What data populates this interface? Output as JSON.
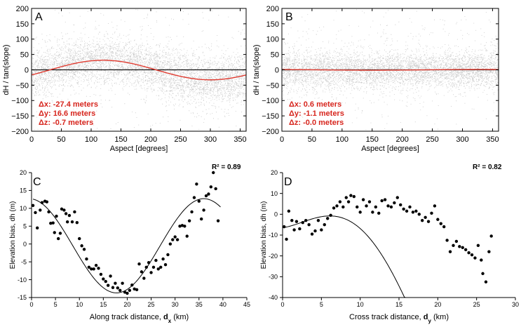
{
  "chart_data": [
    {
      "type": "scatter",
      "panel_label": "A",
      "xlabel": "Aspect [degrees]",
      "ylabel": "dH / tan(slope)",
      "xlim": [
        0,
        360
      ],
      "ylim": [
        -200,
        200
      ],
      "xticks": [
        0,
        50,
        100,
        150,
        200,
        250,
        300,
        350
      ],
      "yticks": [
        -200,
        -150,
        -100,
        -50,
        0,
        50,
        100,
        150,
        200
      ],
      "series": [
        {
          "name": "scatter",
          "kind": "cloud",
          "color": "#9a9a9a",
          "center": 0,
          "spread": 38
        },
        {
          "name": "fit",
          "kind": "sine",
          "amplitude": 31.9,
          "phase_deg": 330,
          "offset": -0.7,
          "color": "#e03c31"
        },
        {
          "name": "zero",
          "kind": "hline",
          "value": 0,
          "color": "#111111"
        }
      ],
      "annotations": [
        "Δx: -27.4 meters",
        "Δy: 16.6  meters",
        "Δz: -0.7  meters"
      ],
      "annotation_color": "#d7261e"
    },
    {
      "type": "scatter",
      "panel_label": "B",
      "xlabel": "Aspect [degrees]",
      "ylabel": "dH / tan(slope)",
      "xlim": [
        0,
        360
      ],
      "ylim": [
        -200,
        200
      ],
      "xticks": [
        0,
        50,
        100,
        150,
        200,
        250,
        300,
        350
      ],
      "yticks": [
        -200,
        -150,
        -100,
        -50,
        0,
        50,
        100,
        150,
        200
      ],
      "series": [
        {
          "name": "scatter",
          "kind": "cloud",
          "color": "#9a9a9a",
          "center": 0,
          "spread": 30
        },
        {
          "name": "fit",
          "kind": "sine",
          "amplitude": 1.2,
          "phase_deg": 120,
          "offset": 0.0,
          "color": "#e03c31"
        },
        {
          "name": "zero",
          "kind": "hline",
          "value": 0,
          "color": "#111111"
        }
      ],
      "annotations": [
        "Δx: 0.6 meters",
        "Δy: -1.1  meters",
        "Δz: -0.0  meters"
      ],
      "annotation_color": "#d7261e"
    },
    {
      "type": "scatter",
      "panel_label": "C",
      "r2": "R² = 0.89",
      "xlabel_main": "Along track distance, ",
      "xlabel_sym": "d",
      "xlabel_sub": "x",
      "xlabel_unit": " (km)",
      "ylabel": "Elevation bias, dh (m)",
      "xlim": [
        0,
        45
      ],
      "ylim": [
        -15,
        20
      ],
      "xticks": [
        0,
        5,
        10,
        15,
        20,
        25,
        30,
        35,
        40,
        45
      ],
      "yticks": [
        -15,
        -10,
        -5,
        0,
        5,
        10,
        15,
        20
      ],
      "points": [
        [
          0.3,
          10.8
        ],
        [
          0.8,
          8.8
        ],
        [
          1.2,
          4.5
        ],
        [
          1.8,
          9.5
        ],
        [
          2.2,
          11.6
        ],
        [
          2.8,
          12.0
        ],
        [
          3.2,
          11.8
        ],
        [
          3.6,
          9.0
        ],
        [
          4.0,
          5.8
        ],
        [
          4.5,
          5.9
        ],
        [
          4.8,
          3.2
        ],
        [
          5.2,
          7.8
        ],
        [
          5.6,
          1.5
        ],
        [
          6.0,
          3.0
        ],
        [
          6.3,
          9.8
        ],
        [
          6.8,
          9.5
        ],
        [
          7.2,
          8.5
        ],
        [
          7.5,
          6.2
        ],
        [
          7.9,
          8.0
        ],
        [
          8.5,
          6.2
        ],
        [
          9.0,
          9.0
        ],
        [
          9.5,
          6.0
        ],
        [
          10.0,
          1.5
        ],
        [
          10.5,
          -0.5
        ],
        [
          11.0,
          -1.5
        ],
        [
          11.5,
          -4.2
        ],
        [
          12.0,
          -6.5
        ],
        [
          12.5,
          -7.0
        ],
        [
          13.0,
          -7.0
        ],
        [
          13.5,
          -6.0
        ],
        [
          14.0,
          -6.8
        ],
        [
          14.5,
          -8.5
        ],
        [
          15.0,
          -9.8
        ],
        [
          15.5,
          -10.5
        ],
        [
          16.0,
          -11.6
        ],
        [
          16.5,
          -9.0
        ],
        [
          17.0,
          -12.2
        ],
        [
          17.5,
          -11.0
        ],
        [
          18.0,
          -12.3
        ],
        [
          18.5,
          -13.0
        ],
        [
          19.0,
          -11.0
        ],
        [
          19.5,
          -13.5
        ],
        [
          20.0,
          -13.8
        ],
        [
          20.5,
          -13.0
        ],
        [
          21.0,
          -11.5
        ],
        [
          21.5,
          -12.6
        ],
        [
          22.0,
          -12.8
        ],
        [
          22.5,
          -5.6
        ],
        [
          23.0,
          -7.8
        ],
        [
          23.5,
          -9.6
        ],
        [
          24.0,
          -6.5
        ],
        [
          24.5,
          -5.2
        ],
        [
          25.0,
          -8.0
        ],
        [
          25.5,
          -6.5
        ],
        [
          26.0,
          -4.6
        ],
        [
          26.5,
          -7.0
        ],
        [
          27.0,
          -6.5
        ],
        [
          27.5,
          -4.2
        ],
        [
          28.0,
          -5.8
        ],
        [
          28.5,
          -3.0
        ],
        [
          29.0,
          0.0
        ],
        [
          29.5,
          1.2
        ],
        [
          30.0,
          2.0
        ],
        [
          30.5,
          1.2
        ],
        [
          31.0,
          5.0
        ],
        [
          31.5,
          5.2
        ],
        [
          32.0,
          5.0
        ],
        [
          32.5,
          2.2
        ],
        [
          33.0,
          6.5
        ],
        [
          33.5,
          9.0
        ],
        [
          34.0,
          13.0
        ],
        [
          34.5,
          16.8
        ],
        [
          35.0,
          12.0
        ],
        [
          35.5,
          7.0
        ],
        [
          36.0,
          9.5
        ],
        [
          36.5,
          13.5
        ],
        [
          37.0,
          14.0
        ],
        [
          37.5,
          16.0
        ],
        [
          38.0,
          20.0
        ],
        [
          38.5,
          15.5
        ],
        [
          39.0,
          6.5
        ]
      ],
      "fit": {
        "kind": "sine",
        "offset": -0.5,
        "amplitude": 13.2,
        "period": 36.5,
        "phase": -0.5,
        "x_range": [
          0.3,
          39.5
        ]
      },
      "point_color": "#000000"
    },
    {
      "type": "scatter",
      "panel_label": "D",
      "r2": "R² = 0.82",
      "xlabel_main": "Cross track distance, ",
      "xlabel_sym": "d",
      "xlabel_sub": "y",
      "xlabel_unit": " (km)",
      "ylabel": "Elevation bias, dh (m)",
      "xlim": [
        0,
        30
      ],
      "ylim": [
        -40,
        20
      ],
      "xticks": [
        0,
        5,
        10,
        15,
        20,
        25,
        30
      ],
      "yticks": [
        -40,
        -30,
        -20,
        -10,
        0,
        10,
        20
      ],
      "points": [
        [
          0.2,
          -6.0
        ],
        [
          0.5,
          -12.0
        ],
        [
          0.8,
          1.5
        ],
        [
          1.2,
          -3.0
        ],
        [
          1.5,
          -7.5
        ],
        [
          1.8,
          -3.5
        ],
        [
          2.2,
          -7.0
        ],
        [
          2.6,
          -4.0
        ],
        [
          3.0,
          -3.0
        ],
        [
          3.4,
          -5.0
        ],
        [
          3.8,
          -9.5
        ],
        [
          4.2,
          -8.0
        ],
        [
          4.6,
          -3.0
        ],
        [
          5.0,
          -7.5
        ],
        [
          5.4,
          -5.0
        ],
        [
          5.8,
          -2.0
        ],
        [
          6.2,
          -0.5
        ],
        [
          6.6,
          3.0
        ],
        [
          7.0,
          4.0
        ],
        [
          7.4,
          6.0
        ],
        [
          7.8,
          3.5
        ],
        [
          8.2,
          8.0
        ],
        [
          8.5,
          6.0
        ],
        [
          8.8,
          9.0
        ],
        [
          9.2,
          8.5
        ],
        [
          9.6,
          3.5
        ],
        [
          10.0,
          1.0
        ],
        [
          10.4,
          7.0
        ],
        [
          10.8,
          4.0
        ],
        [
          11.2,
          6.0
        ],
        [
          11.6,
          1.0
        ],
        [
          12.0,
          3.5
        ],
        [
          12.4,
          0.5
        ],
        [
          12.8,
          6.5
        ],
        [
          13.2,
          7.0
        ],
        [
          13.6,
          4.0
        ],
        [
          14.0,
          3.5
        ],
        [
          14.4,
          5.5
        ],
        [
          14.8,
          8.0
        ],
        [
          15.2,
          4.5
        ],
        [
          15.6,
          2.5
        ],
        [
          16.0,
          1.5
        ],
        [
          16.4,
          3.5
        ],
        [
          16.8,
          1.0
        ],
        [
          17.2,
          1.5
        ],
        [
          17.6,
          0.0
        ],
        [
          18.0,
          -3.0
        ],
        [
          18.4,
          -1.5
        ],
        [
          18.8,
          -3.5
        ],
        [
          19.2,
          0.5
        ],
        [
          19.6,
          4.0
        ],
        [
          20.0,
          -2.5
        ],
        [
          20.4,
          -4.5
        ],
        [
          20.8,
          -6.0
        ],
        [
          21.2,
          -12.5
        ],
        [
          21.6,
          -18.0
        ],
        [
          22.0,
          -15.0
        ],
        [
          22.4,
          -13.0
        ],
        [
          22.8,
          -15.5
        ],
        [
          23.2,
          -16.0
        ],
        [
          23.6,
          -17.0
        ],
        [
          24.0,
          -18.5
        ],
        [
          24.4,
          -19.5
        ],
        [
          24.8,
          -21.0
        ],
        [
          25.2,
          -15.0
        ],
        [
          25.6,
          -22.0
        ],
        [
          25.8,
          -28.5
        ],
        [
          26.2,
          -32.5
        ],
        [
          26.6,
          -18.0
        ],
        [
          26.9,
          -10.5
        ]
      ],
      "fit": {
        "kind": "quartic",
        "coeffs": [
          -6.45,
          0.5,
          0.338,
          -0.0515,
          0.00123
        ],
        "x_range": [
          0,
          27
        ]
      },
      "point_color": "#000000"
    }
  ]
}
